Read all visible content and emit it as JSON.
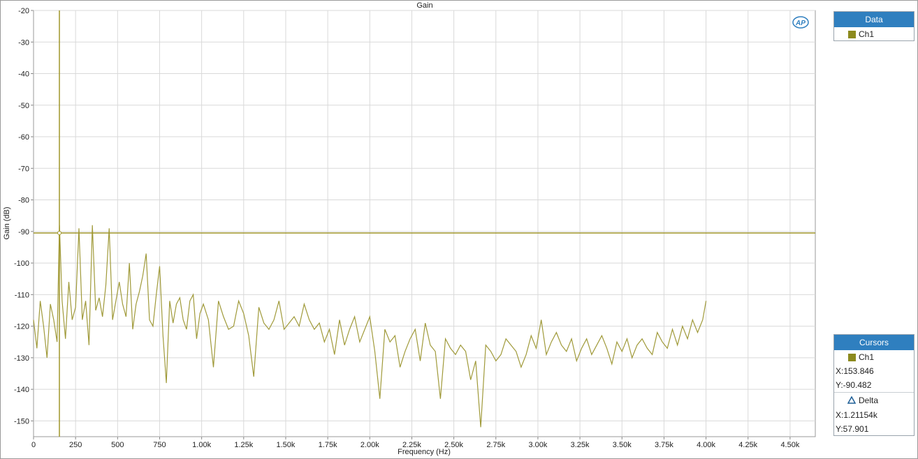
{
  "chart": {
    "title": "Gain",
    "xlabel": "Frequency (Hz)",
    "ylabel": "Gain (dB)",
    "logo": "AP"
  },
  "data_panel": {
    "header": "Data",
    "items": [
      {
        "label": "Ch1",
        "color": "#9a9634"
      }
    ]
  },
  "cursors_panel": {
    "header": "Cursors",
    "channel": "Ch1",
    "x": "X:153.846",
    "y": "Y:-90.482",
    "delta_label": "Delta",
    "delta_x": "X:1.21154k",
    "delta_y": "Y:57.901"
  },
  "colors": {
    "trace": "#a09a3a",
    "cursor": "#a0962a",
    "grid": "#d9d9d9",
    "panel_header": "#2f7fbf"
  },
  "chart_data": {
    "type": "line",
    "title": "Gain",
    "xlabel": "Frequency (Hz)",
    "ylabel": "Gain (dB)",
    "xlim": [
      0,
      4650
    ],
    "ylim": [
      -155,
      -20
    ],
    "x_ticks": [
      0,
      250,
      500,
      750,
      1000,
      1250,
      1500,
      1750,
      2000,
      2250,
      2500,
      2750,
      3000,
      3250,
      3500,
      3750,
      4000,
      4250,
      4500
    ],
    "x_tick_labels": [
      "0",
      "250",
      "500",
      "750",
      "1.00k",
      "1.25k",
      "1.50k",
      "1.75k",
      "2.00k",
      "2.25k",
      "2.50k",
      "2.75k",
      "3.00k",
      "3.25k",
      "3.50k",
      "3.75k",
      "4.00k",
      "4.25k",
      "4.50k"
    ],
    "y_ticks": [
      -20,
      -30,
      -40,
      -50,
      -60,
      -70,
      -80,
      -90,
      -100,
      -110,
      -120,
      -130,
      -140,
      -150
    ],
    "y_tick_labels": [
      "-20",
      "-30",
      "-40",
      "-50",
      "-60",
      "-70",
      "-80",
      "-90",
      "-100",
      "-110",
      "-120",
      "-130",
      "-140",
      "-150"
    ],
    "grid": true,
    "legend": "right",
    "cursor": {
      "x": 153.846,
      "y": -90.482
    },
    "series": [
      {
        "name": "Ch1",
        "x": [
          0,
          20,
          40,
          60,
          80,
          100,
          120,
          140,
          154,
          170,
          190,
          210,
          230,
          250,
          270,
          290,
          310,
          330,
          350,
          370,
          390,
          410,
          430,
          450,
          470,
          490,
          510,
          530,
          550,
          570,
          590,
          610,
          630,
          650,
          670,
          690,
          710,
          730,
          750,
          770,
          790,
          810,
          830,
          850,
          870,
          890,
          910,
          930,
          950,
          970,
          990,
          1010,
          1040,
          1070,
          1100,
          1130,
          1160,
          1190,
          1220,
          1250,
          1280,
          1310,
          1340,
          1370,
          1400,
          1430,
          1460,
          1490,
          1520,
          1550,
          1580,
          1610,
          1640,
          1670,
          1700,
          1730,
          1760,
          1790,
          1820,
          1850,
          1880,
          1910,
          1940,
          1970,
          2000,
          2030,
          2060,
          2090,
          2120,
          2150,
          2180,
          2210,
          2240,
          2270,
          2300,
          2330,
          2360,
          2390,
          2420,
          2450,
          2480,
          2510,
          2540,
          2570,
          2600,
          2630,
          2660,
          2690,
          2720,
          2750,
          2780,
          2810,
          2840,
          2870,
          2900,
          2930,
          2960,
          2990,
          3020,
          3050,
          3080,
          3110,
          3140,
          3170,
          3200,
          3230,
          3260,
          3290,
          3320,
          3350,
          3380,
          3410,
          3440,
          3470,
          3500,
          3530,
          3560,
          3590,
          3620,
          3650,
          3680,
          3710,
          3740,
          3770,
          3800,
          3830,
          3860,
          3890,
          3920,
          3950,
          3980,
          4000
        ],
        "y": [
          -118,
          -127,
          -112,
          -120,
          -130,
          -113,
          -118,
          -125,
          -88,
          -112,
          -124,
          -106,
          -118,
          -114,
          -89,
          -118,
          -112,
          -126,
          -88,
          -115,
          -111,
          -117,
          -107,
          -89,
          -118,
          -112,
          -106,
          -113,
          -117,
          -100,
          -121,
          -113,
          -109,
          -104,
          -97,
          -118,
          -120,
          -110,
          -101,
          -123,
          -138,
          -112,
          -119,
          -113,
          -111,
          -118,
          -121,
          -112,
          -110,
          -124,
          -116,
          -113,
          -118,
          -133,
          -112,
          -117,
          -121,
          -120,
          -112,
          -116,
          -123,
          -136,
          -114,
          -119,
          -121,
          -118,
          -112,
          -121,
          -119,
          -117,
          -120,
          -113,
          -118,
          -121,
          -119,
          -125,
          -121,
          -129,
          -118,
          -126,
          -121,
          -117,
          -125,
          -121,
          -117,
          -128,
          -143,
          -121,
          -125,
          -123,
          -133,
          -128,
          -124,
          -121,
          -131,
          -119,
          -126,
          -128,
          -143,
          -124,
          -127,
          -129,
          -126,
          -128,
          -137,
          -131,
          -152,
          -126,
          -128,
          -131,
          -129,
          -124,
          -126,
          -128,
          -133,
          -129,
          -123,
          -127,
          -118,
          -129,
          -125,
          -122,
          -126,
          -128,
          -124,
          -131,
          -127,
          -124,
          -129,
          -126,
          -123,
          -127,
          -132,
          -125,
          -128,
          -124,
          -130,
          -126,
          -124,
          -127,
          -129,
          -122,
          -125,
          -127,
          -121,
          -126,
          -120,
          -124,
          -118,
          -122,
          -118,
          -112
        ]
      }
    ]
  }
}
